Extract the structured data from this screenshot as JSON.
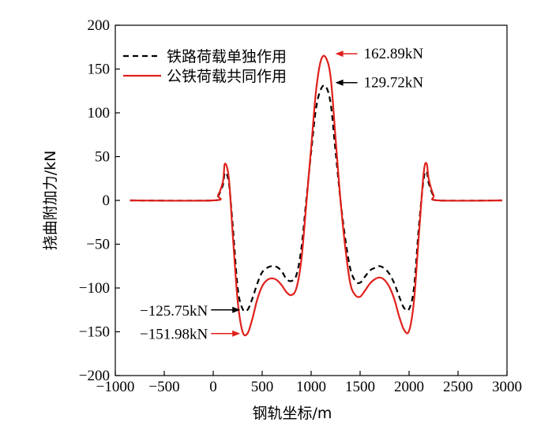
{
  "chart_data": {
    "type": "line",
    "xlabel": "钢轨坐标/m",
    "ylabel": "挠曲附加力/kN",
    "xlim": [
      -1000,
      3000
    ],
    "ylim": [
      -200,
      200
    ],
    "xticks": [
      -1000,
      -500,
      0,
      500,
      1000,
      1500,
      2000,
      2500,
      3000
    ],
    "yticks": [
      -200,
      -150,
      -100,
      -50,
      0,
      50,
      100,
      150,
      200
    ],
    "xtick_labels": [
      "−1000",
      "−500",
      "0",
      "500",
      "1000",
      "1500",
      "2000",
      "2500",
      "3000"
    ],
    "ytick_labels": [
      "−200",
      "−150",
      "−100",
      "−50",
      "0",
      "50",
      "100",
      "150",
      "200"
    ],
    "grid": false,
    "legend_position": "top-left",
    "series": [
      {
        "name": "铁路荷载单独作用",
        "color": "#000000",
        "style": "dashed",
        "x": [
          -850,
          0,
          50,
          100,
          120,
          160,
          200,
          250,
          300,
          350,
          400,
          450,
          500,
          550,
          600,
          650,
          700,
          750,
          800,
          850,
          900,
          950,
          1000,
          1050,
          1100,
          1150,
          1200,
          1250,
          1300,
          1350,
          1400,
          1450,
          1500,
          1550,
          1600,
          1650,
          1700,
          1750,
          1800,
          1850,
          1900,
          1950,
          2000,
          2050,
          2100,
          2150,
          2180,
          2200,
          2250,
          2300,
          2950
        ],
        "y": [
          0,
          0,
          5,
          18,
          32,
          20,
          -30,
          -100,
          -124,
          -125,
          -112,
          -95,
          -82,
          -77,
          -75,
          -76,
          -81,
          -90,
          -92,
          -85,
          -55,
          0,
          55,
          105,
          127,
          130,
          110,
          55,
          0,
          -45,
          -78,
          -92,
          -94,
          -87,
          -80,
          -77,
          -75,
          -78,
          -84,
          -95,
          -110,
          -123,
          -124,
          -100,
          -30,
          25,
          33,
          20,
          5,
          0,
          0
        ]
      },
      {
        "name": "公铁荷载共同作用",
        "color": "#e0201b",
        "style": "solid",
        "x": [
          -850,
          0,
          50,
          100,
          120,
          160,
          200,
          250,
          300,
          350,
          400,
          450,
          500,
          550,
          600,
          650,
          700,
          750,
          800,
          850,
          900,
          950,
          1000,
          1050,
          1100,
          1150,
          1200,
          1250,
          1300,
          1350,
          1400,
          1450,
          1500,
          1550,
          1600,
          1650,
          1700,
          1750,
          1800,
          1850,
          1900,
          1950,
          2000,
          2050,
          2100,
          2150,
          2180,
          2200,
          2250,
          2300,
          2950
        ],
        "y": [
          0,
          0,
          6,
          22,
          42,
          25,
          -40,
          -115,
          -150,
          -152,
          -135,
          -113,
          -98,
          -91,
          -89,
          -91,
          -97,
          -105,
          -108,
          -100,
          -68,
          -5,
          60,
          125,
          160,
          163,
          140,
          70,
          0,
          -55,
          -95,
          -108,
          -110,
          -103,
          -95,
          -90,
          -88,
          -91,
          -99,
          -113,
          -133,
          -148,
          -149,
          -115,
          -40,
          32,
          42,
          25,
          6,
          0,
          0
        ]
      }
    ],
    "annotations": [
      {
        "text": "162.89kN",
        "x": 1150,
        "y": 163,
        "color": "#e0201b",
        "arrow": "left"
      },
      {
        "text": "129.72kN",
        "x": 1150,
        "y": 130,
        "color": "#000000",
        "arrow": "left"
      },
      {
        "text": "−125.75kN",
        "x": 300,
        "y": -125,
        "color": "#000000",
        "arrow": "right"
      },
      {
        "text": "−151.98kN",
        "x": 300,
        "y": -152,
        "color": "#e0201b",
        "arrow": "right"
      }
    ]
  }
}
